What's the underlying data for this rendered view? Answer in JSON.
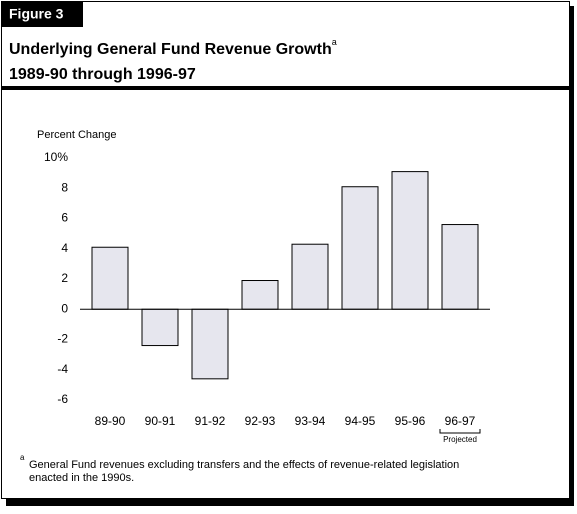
{
  "chart_data": {
    "type": "bar",
    "figure_label": "Figure 3",
    "title": "Underlying General Fund Revenue Growth",
    "footnote_marker": "a",
    "subtitle": "1989-90 through 1996-97",
    "y_label": "Percent Change",
    "categories": [
      "89-90",
      "90-91",
      "91-92",
      "92-93",
      "93-94",
      "94-95",
      "95-96",
      "96-97"
    ],
    "values": [
      4.1,
      -2.4,
      -4.6,
      1.9,
      4.3,
      8.1,
      9.1,
      5.6
    ],
    "color": "#e6e6ee",
    "ylim": [
      -6,
      10
    ],
    "yticks": [
      -6,
      -4,
      -2,
      0,
      2,
      4,
      6,
      8,
      {
        "value": 10,
        "label": "10%"
      }
    ],
    "annotation": "Projected",
    "footnote": [
      "General Fund revenues excluding transfers and the effects of revenue-related legislation",
      "enacted in the 1990s."
    ]
  }
}
